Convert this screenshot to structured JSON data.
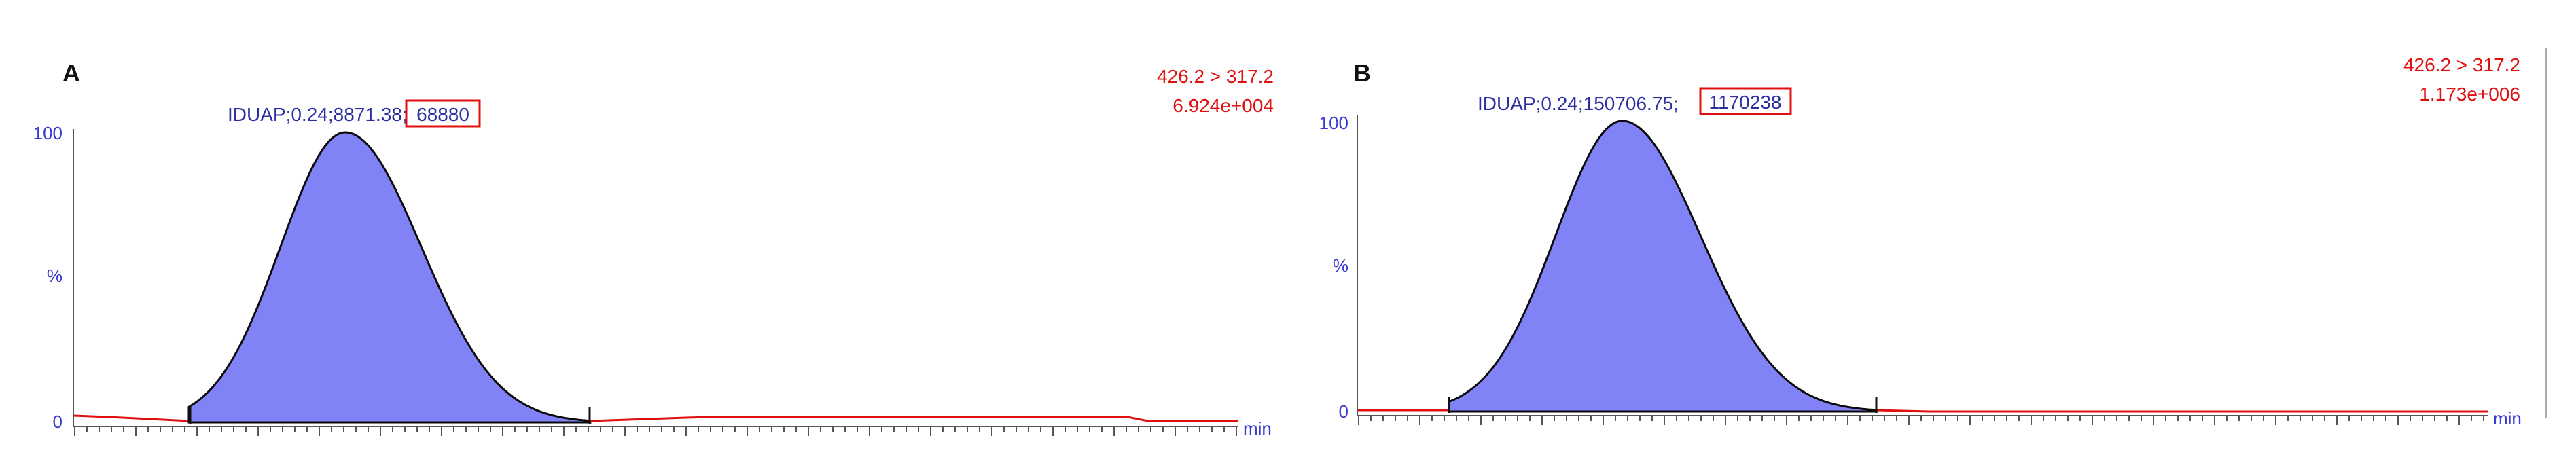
{
  "colors": {
    "peak_fill": "#8082f6",
    "peak_stroke": "#0a0a0a",
    "baseline": "#e01010",
    "axis_text": "#3a3ad0",
    "annot_text": "#e01010",
    "label_text": "#2b2fa0",
    "box": "#e01010"
  },
  "chart_data": [
    {
      "type": "area",
      "panel_label": "A",
      "transition": "426.2 > 317.2",
      "intensity": "6.924e+004",
      "peak_label": "IDUAP;0.24;8871.38;",
      "peak_area_boxed": "68880",
      "y_ticks": [
        "100",
        "%",
        "0"
      ],
      "x_unit": "min",
      "ylim": [
        0,
        100
      ],
      "apex": 0.24,
      "integration_marks": [
        0.1,
        0.38
      ]
    },
    {
      "type": "area",
      "panel_label": "B",
      "transition": "426.2 > 317.2",
      "intensity": "1.173e+006",
      "peak_label": "IDUAP;0.24;150706.75;",
      "peak_area_boxed": "1170238",
      "y_ticks": [
        "100",
        "%",
        "0"
      ],
      "x_unit": "min",
      "ylim": [
        0,
        100
      ],
      "apex": 0.24,
      "integration_marks": [
        0.1,
        0.38
      ]
    }
  ]
}
